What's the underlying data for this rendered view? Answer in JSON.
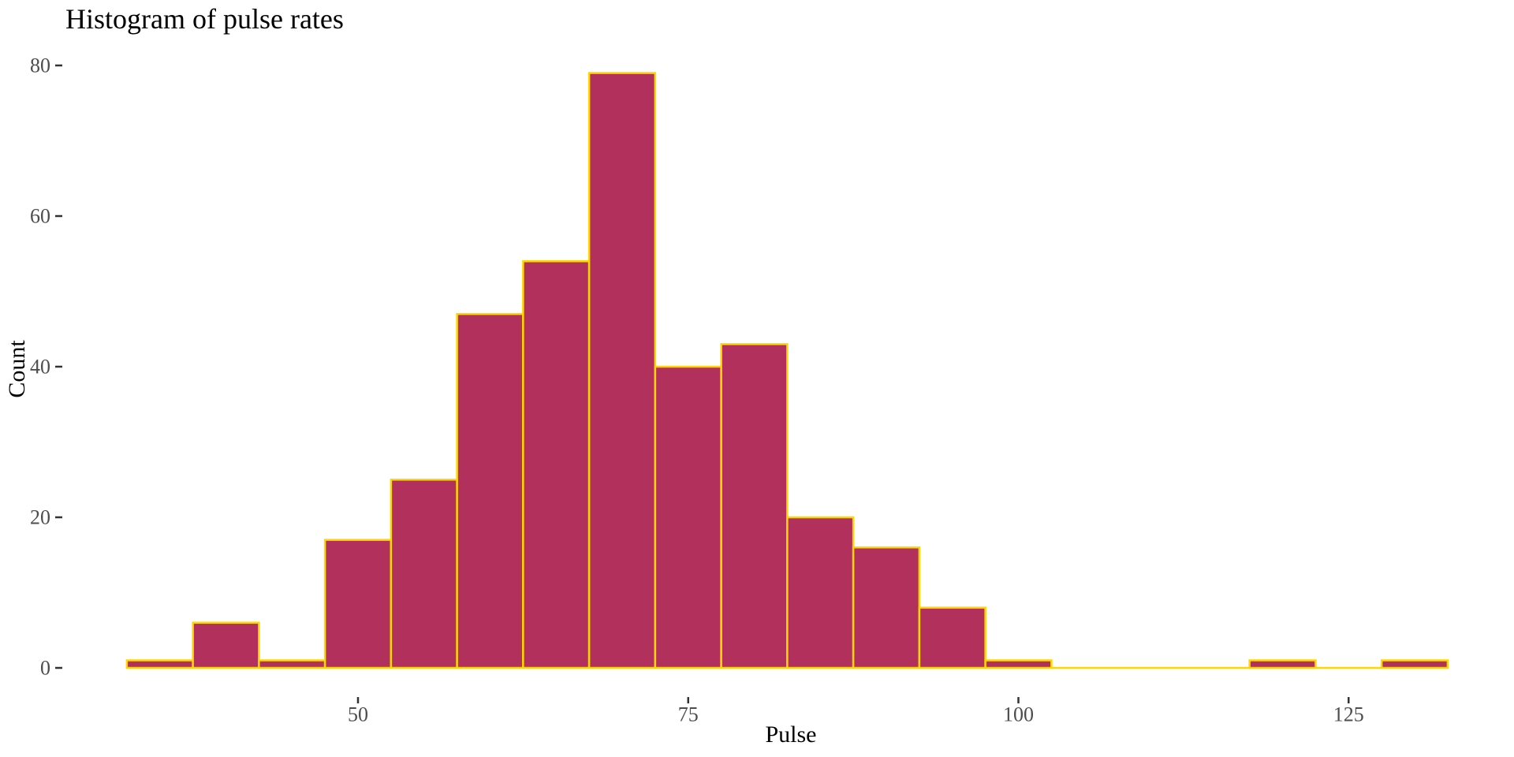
{
  "chart_data": {
    "type": "bar",
    "subtype": "histogram",
    "title": "Histogram of pulse rates",
    "xlabel": "Pulse",
    "ylabel": "Count",
    "bin_width": 5,
    "bin_centers": [
      35,
      40,
      45,
      50,
      55,
      60,
      65,
      70,
      75,
      80,
      85,
      90,
      95,
      100,
      105,
      110,
      115,
      120,
      125,
      130
    ],
    "counts": [
      1,
      6,
      1,
      17,
      25,
      47,
      54,
      79,
      40,
      43,
      20,
      16,
      8,
      1,
      0,
      0,
      0,
      1,
      0,
      1
    ],
    "x_ticks": [
      50,
      75,
      100,
      125
    ],
    "y_ticks": [
      0,
      20,
      40,
      60,
      80
    ],
    "xlim": [
      32.5,
      132.5
    ],
    "ylim": [
      0,
      80
    ],
    "grid": false,
    "legend": "none",
    "colors": {
      "bar_fill": "#B1315C",
      "bar_border": "#FFD700",
      "tick_mark": "#333333",
      "tick_label": "#4D4D4D",
      "text": "#000000",
      "background": "#FFFFFF"
    }
  }
}
